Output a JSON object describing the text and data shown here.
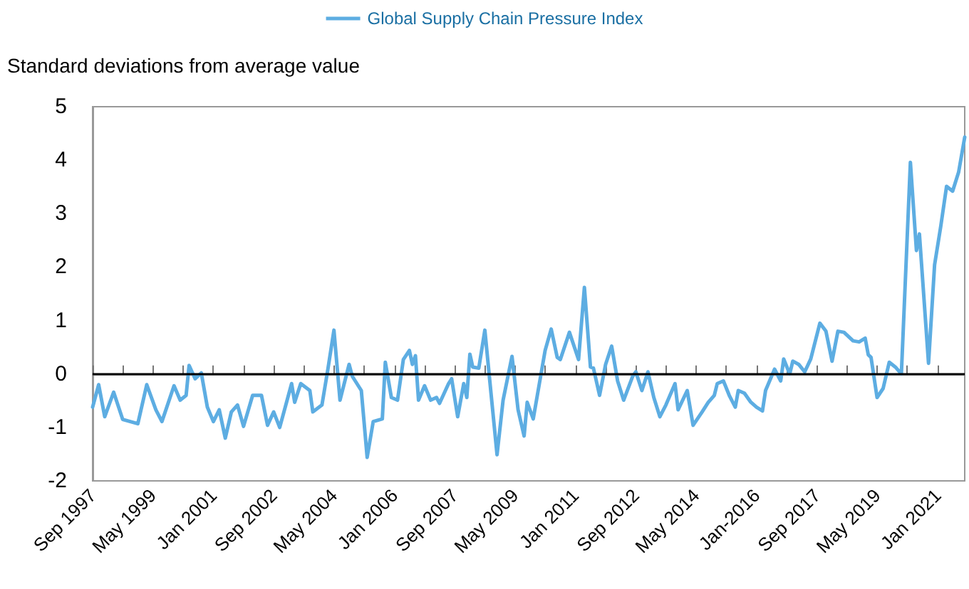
{
  "chart_data": {
    "type": "line",
    "ylabel": "Standard deviations from average value",
    "legend": "top",
    "x": [
      "1997-09",
      "1997-11",
      "1998-01",
      "1998-04",
      "1998-07",
      "1998-12",
      "1999-03",
      "1999-06",
      "1999-08",
      "1999-12",
      "2000-02",
      "2000-04",
      "2000-05",
      "2000-07",
      "2000-09",
      "2000-11",
      "2001-01",
      "2001-03",
      "2001-05",
      "2001-07",
      "2001-09",
      "2001-11",
      "2002-02",
      "2002-05",
      "2002-07",
      "2002-09",
      "2002-11",
      "2003-03",
      "2003-04",
      "2003-06",
      "2003-09",
      "2003-10",
      "2004-01",
      "2004-03",
      "2004-05",
      "2004-07",
      "2004-10",
      "2004-11",
      "2005-02",
      "2005-04",
      "2005-06",
      "2005-09",
      "2005-10",
      "2005-12",
      "2006-02",
      "2006-04",
      "2006-06",
      "2006-07",
      "2006-08",
      "2006-09",
      "2006-11",
      "2007-01",
      "2007-03",
      "2007-04",
      "2007-07",
      "2007-08",
      "2007-10",
      "2007-12",
      "2008-01",
      "2008-02",
      "2008-03",
      "2008-05",
      "2008-07",
      "2008-09",
      "2008-11",
      "2009-01",
      "2009-04",
      "2009-06",
      "2009-08",
      "2009-09",
      "2009-11",
      "2010-03",
      "2010-05",
      "2010-07",
      "2010-08",
      "2010-11",
      "2011-02",
      "2011-04",
      "2011-06",
      "2011-07",
      "2011-09",
      "2011-11",
      "2012-01",
      "2012-03",
      "2012-05",
      "2012-08",
      "2012-09",
      "2012-11",
      "2013-01",
      "2013-03",
      "2013-05",
      "2013-07",
      "2013-10",
      "2013-11",
      "2014-02",
      "2014-04",
      "2014-07",
      "2014-09",
      "2014-11",
      "2014-12",
      "2015-02",
      "2015-04",
      "2015-06",
      "2015-07",
      "2015-09",
      "2015-11",
      "2016-01",
      "2016-03",
      "2016-04",
      "2016-07",
      "2016-09",
      "2016-10",
      "2016-12",
      "2017-01",
      "2017-03",
      "2017-05",
      "2017-07",
      "2017-10",
      "2017-12",
      "2018-02",
      "2018-04",
      "2018-06",
      "2018-09",
      "2018-11",
      "2019-01",
      "2019-02",
      "2019-03",
      "2019-05",
      "2019-07",
      "2019-09",
      "2019-11",
      "2020-01",
      "2020-04",
      "2020-06",
      "2020-07",
      "2020-10",
      "2020-12",
      "2021-02",
      "2021-04",
      "2021-06",
      "2021-08",
      "2021-10"
    ],
    "series": [
      {
        "name": "Global Supply Chain Pressure Index",
        "color": "#5dade2",
        "values": [
          -0.62,
          -0.2,
          -0.8,
          -0.34,
          -0.85,
          -0.93,
          -0.2,
          -0.67,
          -0.89,
          -0.22,
          -0.49,
          -0.4,
          0.16,
          -0.09,
          0.02,
          -0.62,
          -0.89,
          -0.67,
          -1.2,
          -0.71,
          -0.58,
          -0.98,
          -0.4,
          -0.4,
          -0.96,
          -0.71,
          -1.0,
          -0.18,
          -0.53,
          -0.18,
          -0.31,
          -0.71,
          -0.58,
          0.09,
          0.82,
          -0.49,
          0.18,
          -0.04,
          -0.31,
          -1.56,
          -0.89,
          -0.84,
          0.22,
          -0.44,
          -0.49,
          0.27,
          0.44,
          0.18,
          0.34,
          -0.49,
          -0.22,
          -0.49,
          -0.44,
          -0.55,
          -0.18,
          -0.09,
          -0.8,
          -0.18,
          -0.44,
          0.37,
          0.13,
          0.11,
          0.82,
          -0.36,
          -1.51,
          -0.49,
          0.33,
          -0.67,
          -1.16,
          -0.53,
          -0.84,
          0.44,
          0.84,
          0.31,
          0.27,
          0.78,
          0.27,
          1.62,
          0.13,
          0.11,
          -0.4,
          0.18,
          0.52,
          -0.13,
          -0.49,
          -0.04,
          0.04,
          -0.31,
          0.04,
          -0.44,
          -0.8,
          -0.58,
          -0.18,
          -0.67,
          -0.31,
          -0.96,
          -0.71,
          -0.53,
          -0.4,
          -0.18,
          -0.13,
          -0.4,
          -0.62,
          -0.31,
          -0.36,
          -0.52,
          -0.62,
          -0.69,
          -0.31,
          0.09,
          -0.13,
          0.28,
          0.0,
          0.24,
          0.18,
          0.04,
          0.28,
          0.95,
          0.8,
          0.24,
          0.8,
          0.78,
          0.62,
          0.6,
          0.67,
          0.36,
          0.31,
          -0.44,
          -0.27,
          0.22,
          0.13,
          0.0,
          3.96,
          2.31,
          2.62,
          0.2,
          2.04,
          2.76,
          3.51,
          3.42,
          3.78,
          4.43
        ]
      }
    ],
    "xlim": [
      "1997-09",
      "2021-10"
    ],
    "xticks": [
      {
        "value": "1997-09",
        "label": "Sep 1997"
      },
      {
        "value": "1998-07",
        "label": null
      },
      {
        "value": "1999-05",
        "label": "May 1999"
      },
      {
        "value": "2000-03",
        "label": null
      },
      {
        "value": "2001-01",
        "label": "Jan 2001"
      },
      {
        "value": "2001-11",
        "label": null
      },
      {
        "value": "2002-09",
        "label": "Sep 2002"
      },
      {
        "value": "2003-07",
        "label": null
      },
      {
        "value": "2004-05",
        "label": "May 2004"
      },
      {
        "value": "2005-03",
        "label": null
      },
      {
        "value": "2006-01",
        "label": "Jan 2006"
      },
      {
        "value": "2006-11",
        "label": null
      },
      {
        "value": "2007-09",
        "label": "Sep 2007"
      },
      {
        "value": "2008-07",
        "label": null
      },
      {
        "value": "2009-05",
        "label": "May 2009"
      },
      {
        "value": "2010-03",
        "label": null
      },
      {
        "value": "2011-01",
        "label": "Jan 2011"
      },
      {
        "value": "2011-11",
        "label": null
      },
      {
        "value": "2012-09",
        "label": "Sep 2012"
      },
      {
        "value": "2013-07",
        "label": null
      },
      {
        "value": "2014-05",
        "label": "May 2014"
      },
      {
        "value": "2015-03",
        "label": null
      },
      {
        "value": "2016-01",
        "label": "Jan-2016"
      },
      {
        "value": "2016-11",
        "label": null
      },
      {
        "value": "2017-09",
        "label": "Sep 2017"
      },
      {
        "value": "2018-07",
        "label": null
      },
      {
        "value": "2019-05",
        "label": "May 2019"
      },
      {
        "value": "2020-03",
        "label": null
      },
      {
        "value": "2021-01",
        "label": "Jan 2021"
      }
    ],
    "ylim": [
      -2,
      5
    ],
    "yticks": [
      -2,
      -1,
      0,
      1,
      2,
      3,
      4,
      5
    ],
    "ref_lines": [
      {
        "axis": "y",
        "value": 0,
        "color": "#000000"
      }
    ],
    "grid": false,
    "marker": "none",
    "line_style": "solid"
  }
}
